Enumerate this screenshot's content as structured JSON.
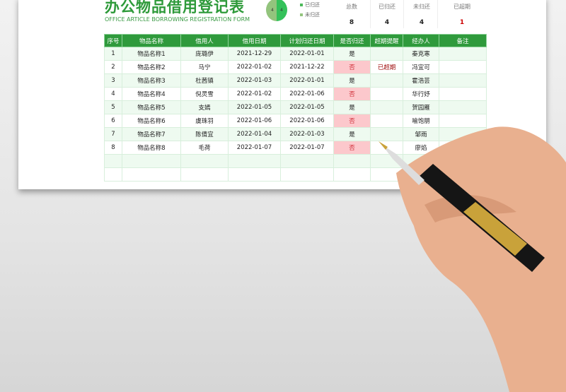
{
  "title": "办公物品借用登记表",
  "subtitle": "OFFICE ARTICLE BORROWING REGISTRATION FORM",
  "pie": {
    "returned": 4,
    "not_returned": 4,
    "colors": {
      "returned": "#93c47d",
      "not_returned": "#34c15a"
    }
  },
  "legend": [
    "已归还",
    "未归还"
  ],
  "stats": [
    {
      "label": "总数",
      "value": "8"
    },
    {
      "label": "已归还",
      "value": "4"
    },
    {
      "label": "未归还",
      "value": "4"
    },
    {
      "label": "已超期",
      "value": "1"
    }
  ],
  "headers": [
    "序号",
    "物品名称",
    "借用人",
    "借用日期",
    "计划归还日期",
    "是否归还",
    "超期提醒",
    "经办人",
    "备注"
  ],
  "rows": [
    [
      "1",
      "物品名称1",
      "庞璐伊",
      "2021-12-29",
      "2022-01-01",
      "是",
      "",
      "秦克寒",
      ""
    ],
    [
      "2",
      "物品名称2",
      "马宁",
      "2022-01-02",
      "2021-12-22",
      "否",
      "已超期",
      "冯宜可",
      ""
    ],
    [
      "3",
      "物品名称3",
      "杜茜镇",
      "2022-01-03",
      "2022-01-01",
      "是",
      "",
      "霍浩芸",
      ""
    ],
    [
      "4",
      "物品名称4",
      "倪灵雪",
      "2022-01-02",
      "2022-01-06",
      "否",
      "",
      "华行妤",
      ""
    ],
    [
      "5",
      "物品名称5",
      "支嫣",
      "2022-01-05",
      "2022-01-05",
      "是",
      "",
      "贺园雁",
      ""
    ],
    [
      "6",
      "物品名称6",
      "虞珠羽",
      "2022-01-06",
      "2022-01-06",
      "否",
      "",
      "喻饱朋",
      ""
    ],
    [
      "7",
      "物品名称7",
      "陈倩宜",
      "2022-01-04",
      "2022-01-03",
      "是",
      "",
      "邹雨",
      ""
    ],
    [
      "8",
      "物品名称8",
      "毛荷",
      "2022-01-07",
      "2022-01-07",
      "否",
      "",
      "廖焰",
      ""
    ]
  ],
  "accent": "#2f9a3c"
}
